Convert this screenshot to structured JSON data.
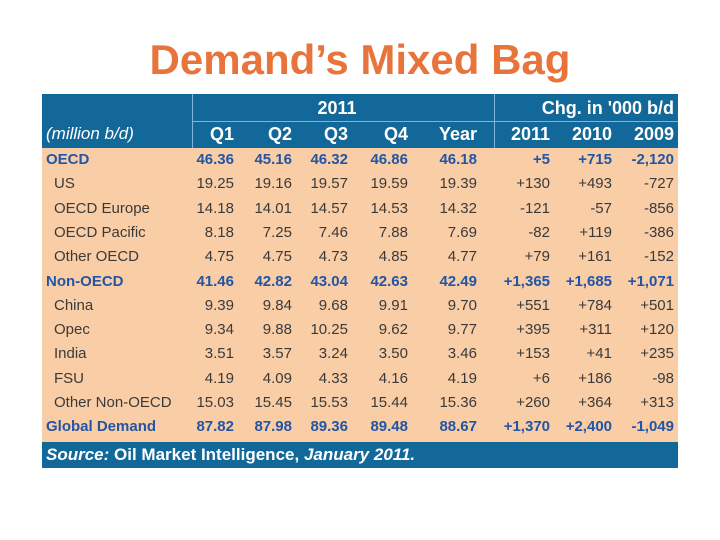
{
  "slide": {
    "title": "Demand’s Mixed Bag"
  },
  "table": {
    "group_header": "2011",
    "chg_header": "Chg. in '000 b/d",
    "units_label": "(million b/d)",
    "columns": [
      "Q1",
      "Q2",
      "Q3",
      "Q4",
      "Year",
      "2011",
      "2010",
      "2009"
    ],
    "rows": [
      {
        "label": "OECD",
        "group": true,
        "values": [
          "46.36",
          "45.16",
          "46.32",
          "46.86",
          "46.18",
          "+5",
          "+715",
          "-2,120"
        ]
      },
      {
        "label": "US",
        "group": false,
        "values": [
          "19.25",
          "19.16",
          "19.57",
          "19.59",
          "19.39",
          "+130",
          "+493",
          "-727"
        ]
      },
      {
        "label": "OECD Europe",
        "group": false,
        "values": [
          "14.18",
          "14.01",
          "14.57",
          "14.53",
          "14.32",
          "-121",
          "-57",
          "-856"
        ]
      },
      {
        "label": "OECD Pacific",
        "group": false,
        "values": [
          "8.18",
          "7.25",
          "7.46",
          "7.88",
          "7.69",
          "-82",
          "+119",
          "-386"
        ]
      },
      {
        "label": "Other OECD",
        "group": false,
        "values": [
          "4.75",
          "4.75",
          "4.73",
          "4.85",
          "4.77",
          "+79",
          "+161",
          "-152"
        ]
      },
      {
        "label": "Non-OECD",
        "group": true,
        "values": [
          "41.46",
          "42.82",
          "43.04",
          "42.63",
          "42.49",
          "+1,365",
          "+1,685",
          "+1,071"
        ]
      },
      {
        "label": "China",
        "group": false,
        "values": [
          "9.39",
          "9.84",
          "9.68",
          "9.91",
          "9.70",
          "+551",
          "+784",
          "+501"
        ]
      },
      {
        "label": "Opec",
        "group": false,
        "values": [
          "9.34",
          "9.88",
          "10.25",
          "9.62",
          "9.77",
          "+395",
          "+311",
          "+120"
        ]
      },
      {
        "label": "India",
        "group": false,
        "values": [
          "3.51",
          "3.57",
          "3.24",
          "3.50",
          "3.46",
          "+153",
          "+41",
          "+235"
        ]
      },
      {
        "label": "FSU",
        "group": false,
        "values": [
          "4.19",
          "4.09",
          "4.33",
          "4.16",
          "4.19",
          "+6",
          "+186",
          "-98"
        ]
      },
      {
        "label": "Other Non-OECD",
        "group": false,
        "values": [
          "15.03",
          "15.45",
          "15.53",
          "15.44",
          "15.36",
          "+260",
          "+364",
          "+313"
        ]
      },
      {
        "label": "Global Demand",
        "group": true,
        "values": [
          "87.82",
          "87.98",
          "89.36",
          "89.48",
          "88.67",
          "+1,370",
          "+2,400",
          "-1,049"
        ]
      }
    ],
    "source_label": "Source:",
    "source_text": "Oil Market Intelligence,",
    "source_date": "January 2011."
  }
}
